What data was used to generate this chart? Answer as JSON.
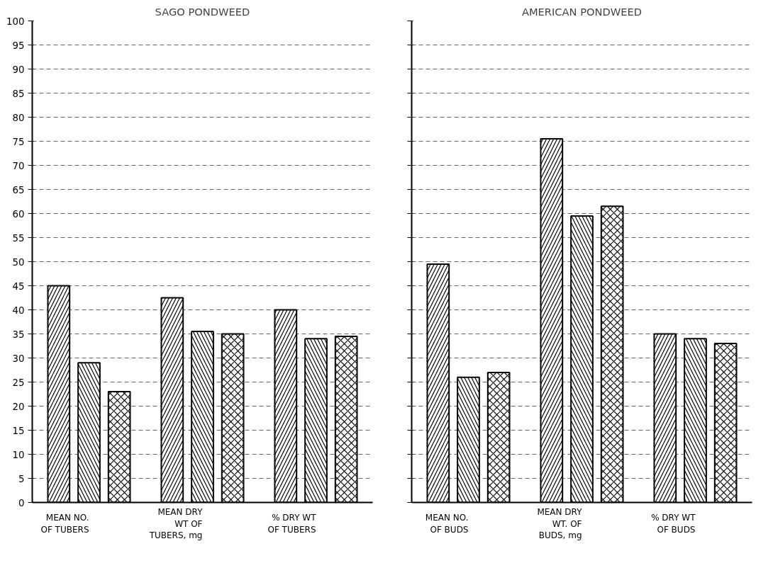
{
  "chart_data": [
    {
      "type": "bar",
      "title": "SAGO PONDWEED",
      "categories": [
        "MEAN NO.\nOF TUBERS",
        "MEAN DRY\nWT OF\nTUBERS, mg",
        "% DRY WT\nOF TUBERS"
      ],
      "series": [
        {
          "color": "#000000",
          "values": [
            45,
            42.5,
            40
          ]
        },
        {
          "color": "#000000",
          "values": [
            29,
            35.5,
            34
          ]
        },
        {
          "color": "#000000",
          "values": [
            23,
            35,
            34.5
          ]
        }
      ],
      "ylim": [
        0,
        100
      ],
      "yticks": [
        0,
        5,
        10,
        15,
        20,
        25,
        30,
        35,
        40,
        45,
        50,
        55,
        60,
        65,
        70,
        75,
        80,
        85,
        90,
        95,
        100
      ],
      "grid": "y"
    },
    {
      "type": "bar",
      "title": "AMERICAN PONDWEED",
      "categories": [
        "MEAN NO.\nOF BUDS",
        "MEAN DRY\nWT. OF\nBUDS, mg",
        "% DRY WT\nOF BUDS"
      ],
      "series": [
        {
          "color": "#000000",
          "values": [
            49.5,
            75.5,
            35
          ]
        },
        {
          "color": "#000000",
          "values": [
            26,
            59.5,
            34
          ]
        },
        {
          "color": "#000000",
          "values": [
            27,
            61.5,
            33
          ]
        }
      ],
      "ylim": [
        0,
        100
      ],
      "yticks": [
        0,
        5,
        10,
        15,
        20,
        25,
        30,
        35,
        40,
        45,
        50,
        55,
        60,
        65,
        70,
        75,
        80,
        85,
        90,
        95,
        100
      ],
      "grid": "y",
      "tick_labels": "x"
    }
  ]
}
